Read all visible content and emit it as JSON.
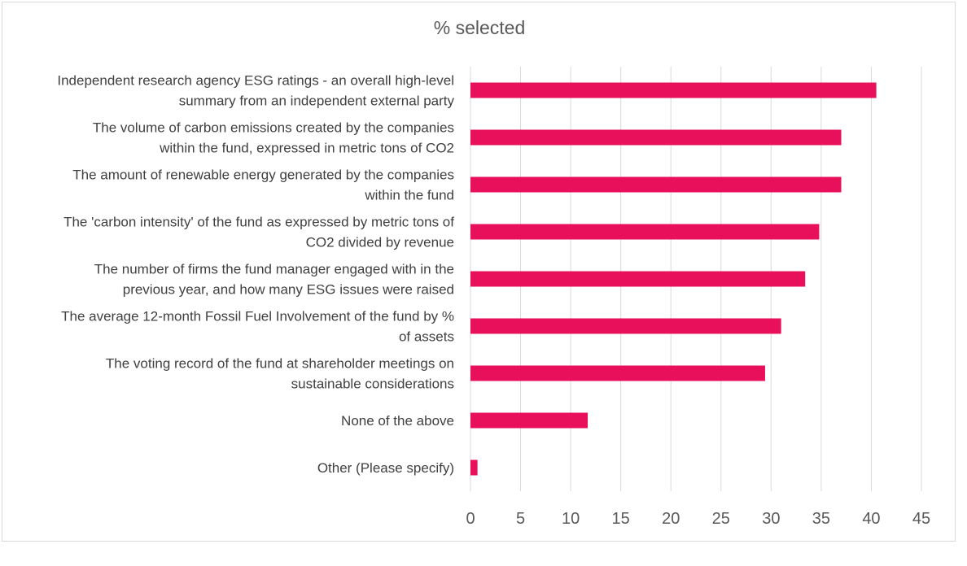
{
  "chart_data": {
    "type": "bar",
    "orientation": "horizontal",
    "title": "% selected",
    "xlabel": "",
    "ylabel": "",
    "xlim": [
      0,
      45
    ],
    "x_ticks": [
      0,
      5,
      10,
      15,
      20,
      25,
      30,
      35,
      40,
      45
    ],
    "grid": true,
    "bar_color": "#e8105a",
    "categories": [
      [
        "Independent research agency ESG ratings - an overall high-level",
        "summary from an independent external party"
      ],
      [
        "The volume of carbon emissions created by the companies",
        "within the fund, expressed in metric tons of CO2"
      ],
      [
        "The amount of renewable energy generated by the companies",
        "within the fund"
      ],
      [
        "The 'carbon intensity' of the fund as expressed by metric tons of",
        "CO2 divided by revenue"
      ],
      [
        "The number of firms the fund manager engaged with in the",
        "previous year, and how many ESG issues were raised"
      ],
      [
        "The average 12-month Fossil Fuel Involvement of the fund by %",
        "of assets"
      ],
      [
        "The voting record of the fund at shareholder meetings on",
        "sustainable considerations"
      ],
      [
        "None of the above"
      ],
      [
        "Other (Please specify)"
      ]
    ],
    "values": [
      40.5,
      37.0,
      37.0,
      34.8,
      33.4,
      31.0,
      29.4,
      11.7,
      0.7
    ]
  }
}
